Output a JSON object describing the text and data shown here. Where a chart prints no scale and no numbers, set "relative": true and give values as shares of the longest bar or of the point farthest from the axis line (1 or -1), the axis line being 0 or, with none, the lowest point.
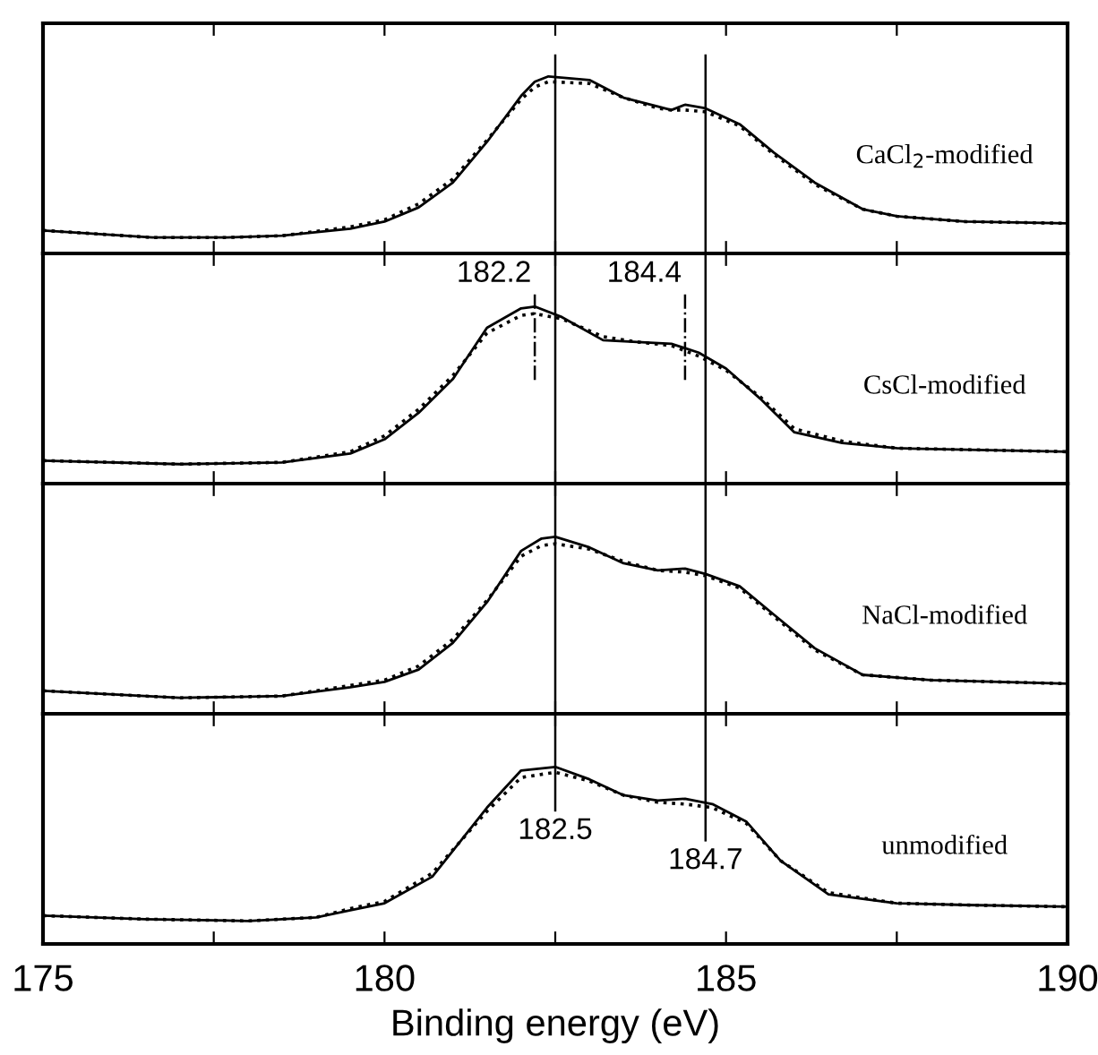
{
  "chart_data": [
    {
      "type": "line",
      "relative": true,
      "x": [
        175,
        176.6,
        177.7,
        178.5,
        179.5,
        180,
        180.5,
        181,
        181.5,
        182,
        182.2,
        182.4,
        183,
        183.5,
        184,
        184.2,
        184.4,
        184.7,
        185.2,
        185.7,
        186.3,
        187,
        187.5,
        188.5,
        190
      ],
      "series": [
        {
          "color": "#000000",
          "line_style": "solid",
          "values": [
            0.13,
            0.09,
            0.09,
            0.1,
            0.14,
            0.18,
            0.26,
            0.4,
            0.63,
            0.89,
            0.97,
            1.0,
            0.98,
            0.88,
            0.83,
            0.81,
            0.84,
            0.82,
            0.73,
            0.57,
            0.4,
            0.25,
            0.21,
            0.18,
            0.17
          ]
        },
        {
          "color": "#000000",
          "line_style": "dotted",
          "values": [
            0.13,
            0.09,
            0.09,
            0.1,
            0.15,
            0.19,
            0.28,
            0.42,
            0.64,
            0.87,
            0.94,
            0.97,
            0.96,
            0.88,
            0.82,
            0.81,
            0.81,
            0.8,
            0.72,
            0.56,
            0.39,
            0.25,
            0.21,
            0.18,
            0.17
          ]
        }
      ],
      "xlim": [
        175,
        190
      ],
      "xticks": [
        {
          "value": 175,
          "label": null
        },
        {
          "value": 177.5,
          "label": null
        },
        {
          "value": 180,
          "label": null
        },
        {
          "value": 182.5,
          "label": null
        },
        {
          "value": 185,
          "label": null
        },
        {
          "value": 187.5,
          "label": null
        },
        {
          "value": 190,
          "label": null
        }
      ],
      "tick_labels": false,
      "ref_lines": [
        {
          "axis": "x",
          "value": 182.5,
          "color": "#000000",
          "line_style": "solid"
        },
        {
          "axis": "x",
          "value": 184.7,
          "color": "#000000",
          "line_style": "solid"
        }
      ],
      "annotations": [
        "CaCl$_{2}$-modified"
      ]
    },
    {
      "type": "line",
      "relative": true,
      "x": [
        175,
        177,
        178.5,
        179.5,
        180,
        180.5,
        181,
        181.5,
        182,
        182.2,
        182.6,
        183.2,
        183.7,
        184.2,
        184.6,
        185,
        185.5,
        186,
        186.7,
        187.5,
        190
      ],
      "series": [
        {
          "color": "#000000",
          "line_style": "solid",
          "values": [
            0.13,
            0.11,
            0.12,
            0.17,
            0.25,
            0.4,
            0.59,
            0.88,
            0.99,
            1.0,
            0.94,
            0.81,
            0.8,
            0.79,
            0.74,
            0.65,
            0.48,
            0.29,
            0.23,
            0.2,
            0.18
          ]
        },
        {
          "color": "#000000",
          "line_style": "dotted",
          "values": [
            0.13,
            0.11,
            0.12,
            0.18,
            0.27,
            0.42,
            0.61,
            0.85,
            0.95,
            0.96,
            0.93,
            0.83,
            0.8,
            0.78,
            0.72,
            0.64,
            0.49,
            0.31,
            0.24,
            0.2,
            0.18
          ]
        }
      ],
      "xlim": [
        175,
        190
      ],
      "xticks": [
        {
          "value": 175,
          "label": null
        },
        {
          "value": 177.5,
          "label": null
        },
        {
          "value": 180,
          "label": null
        },
        {
          "value": 182.5,
          "label": null
        },
        {
          "value": 185,
          "label": null
        },
        {
          "value": 187.5,
          "label": null
        },
        {
          "value": 190,
          "label": null
        }
      ],
      "tick_labels": false,
      "ref_lines": [
        {
          "axis": "x",
          "value": 182.5,
          "color": "#000000",
          "line_style": "solid"
        },
        {
          "axis": "x",
          "value": 184.7,
          "color": "#000000",
          "line_style": "solid"
        },
        {
          "axis": "x",
          "value": 182.2,
          "label": "182.2",
          "color": "#000000",
          "line_style": "dashdot"
        },
        {
          "axis": "x",
          "value": 184.4,
          "label": "184.4",
          "color": "#000000",
          "line_style": "dashdot"
        }
      ],
      "annotations": [
        "CsCl-modified"
      ]
    },
    {
      "type": "line",
      "relative": true,
      "x": [
        175,
        177,
        178.5,
        179.5,
        180,
        180.5,
        181,
        181.5,
        182,
        182.3,
        182.5,
        183,
        183.5,
        184,
        184.4,
        184.7,
        185.2,
        185.7,
        186.3,
        187,
        188,
        190
      ],
      "series": [
        {
          "color": "#000000",
          "line_style": "solid",
          "values": [
            0.13,
            0.09,
            0.1,
            0.15,
            0.18,
            0.25,
            0.4,
            0.63,
            0.92,
            0.99,
            1.0,
            0.94,
            0.85,
            0.81,
            0.82,
            0.79,
            0.72,
            0.56,
            0.37,
            0.22,
            0.19,
            0.17
          ]
        },
        {
          "color": "#000000",
          "line_style": "dotted",
          "values": [
            0.13,
            0.09,
            0.1,
            0.16,
            0.19,
            0.27,
            0.42,
            0.64,
            0.89,
            0.95,
            0.96,
            0.93,
            0.86,
            0.81,
            0.8,
            0.78,
            0.71,
            0.55,
            0.36,
            0.22,
            0.19,
            0.17
          ]
        }
      ],
      "xlim": [
        175,
        190
      ],
      "xticks": [
        {
          "value": 175,
          "label": null
        },
        {
          "value": 177.5,
          "label": null
        },
        {
          "value": 180,
          "label": null
        },
        {
          "value": 182.5,
          "label": null
        },
        {
          "value": 185,
          "label": null
        },
        {
          "value": 187.5,
          "label": null
        },
        {
          "value": 190,
          "label": null
        }
      ],
      "tick_labels": false,
      "ref_lines": [
        {
          "axis": "x",
          "value": 182.5,
          "color": "#000000",
          "line_style": "solid"
        },
        {
          "axis": "x",
          "value": 184.7,
          "color": "#000000",
          "line_style": "solid"
        }
      ],
      "annotations": [
        "NaCl-modified"
      ]
    },
    {
      "type": "line",
      "relative": true,
      "x": [
        175,
        176.5,
        178,
        179,
        179.5,
        180,
        180.7,
        181.5,
        182,
        182.5,
        183,
        183.5,
        184,
        184.4,
        184.8,
        185.3,
        185.8,
        186.5,
        187.5,
        188.5,
        190
      ],
      "series": [
        {
          "color": "#000000",
          "line_style": "solid",
          "values": [
            0.16,
            0.14,
            0.13,
            0.15,
            0.19,
            0.23,
            0.38,
            0.77,
            0.98,
            1.0,
            0.93,
            0.84,
            0.81,
            0.82,
            0.79,
            0.69,
            0.47,
            0.28,
            0.23,
            0.22,
            0.21
          ]
        },
        {
          "color": "#000000",
          "line_style": "dotted",
          "values": [
            0.16,
            0.14,
            0.13,
            0.15,
            0.2,
            0.24,
            0.4,
            0.75,
            0.94,
            0.97,
            0.92,
            0.84,
            0.8,
            0.79,
            0.77,
            0.68,
            0.47,
            0.29,
            0.23,
            0.22,
            0.21
          ]
        }
      ],
      "xlim": [
        175,
        190
      ],
      "xticks": [
        175,
        {
          "value": 177.5,
          "label": null
        },
        180,
        {
          "value": 182.5,
          "label": null
        },
        185,
        {
          "value": 187.5,
          "label": null
        },
        190
      ],
      "tick_labels": "x",
      "xlabel": "Binding energy (eV)",
      "ref_lines": [
        {
          "axis": "x",
          "value": 182.5,
          "label": "182.5",
          "color": "#000000",
          "line_style": "solid"
        },
        {
          "axis": "x",
          "value": 184.7,
          "label": "184.7",
          "color": "#000000",
          "line_style": "solid"
        }
      ],
      "annotations": [
        "unmodified"
      ]
    }
  ]
}
